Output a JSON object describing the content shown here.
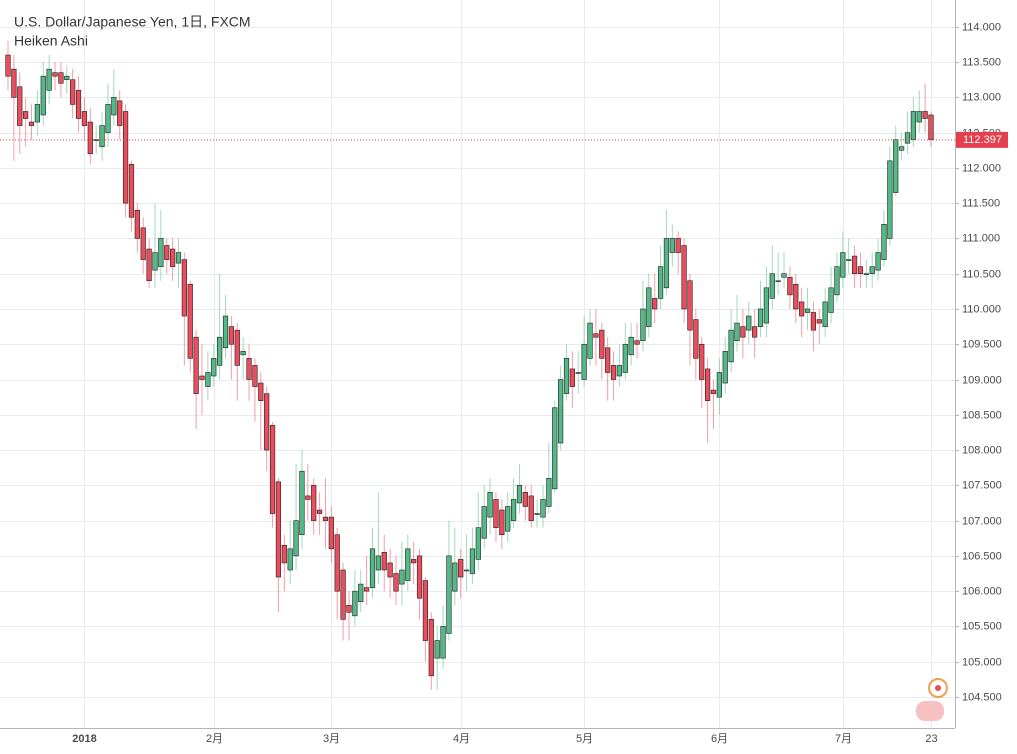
{
  "chart_data": {
    "type": "candlestick",
    "title": "U.S. Dollar/Japanese Yen, 1日, FXCM",
    "subtitle": "Heiken Ashi",
    "categories": [
      null,
      null,
      null,
      null,
      null,
      null,
      null,
      null,
      null,
      null,
      null,
      null,
      null,
      "2018",
      null,
      null,
      null,
      null,
      null,
      null,
      null,
      null,
      null,
      null,
      null,
      null,
      null,
      null,
      null,
      null,
      null,
      null,
      null,
      null,
      null,
      "2月",
      null,
      null,
      null,
      null,
      null,
      null,
      null,
      null,
      null,
      null,
      null,
      null,
      null,
      null,
      null,
      null,
      null,
      null,
      null,
      "3月",
      null,
      null,
      null,
      null,
      null,
      null,
      null,
      null,
      null,
      null,
      null,
      null,
      null,
      null,
      null,
      null,
      null,
      null,
      null,
      null,
      null,
      "4月",
      null,
      null,
      null,
      null,
      null,
      null,
      null,
      null,
      null,
      null,
      null,
      null,
      null,
      null,
      null,
      null,
      null,
      null,
      null,
      null,
      "5月",
      null,
      null,
      null,
      null,
      null,
      null,
      null,
      null,
      null,
      null,
      null,
      null,
      null,
      null,
      null,
      null,
      null,
      null,
      null,
      null,
      null,
      null,
      "6月",
      null,
      null,
      null,
      null,
      null,
      null,
      null,
      null,
      null,
      null,
      null,
      null,
      null,
      null,
      null,
      null,
      null,
      null,
      null,
      null,
      "7月",
      null,
      null,
      null,
      null,
      null,
      null,
      null,
      null,
      null,
      null,
      null,
      null,
      null,
      null,
      "23"
    ],
    "open": [
      113.6,
      113.4,
      113.15,
      112.8,
      112.65,
      112.65,
      112.75,
      113.1,
      113.35,
      113.35,
      113.25,
      113.25,
      113.1,
      112.8,
      112.65,
      112.4,
      112.3,
      112.5,
      112.75,
      112.95,
      112.8,
      112.05,
      111.4,
      111.15,
      110.85,
      110.55,
      110.6,
      110.9,
      110.85,
      110.65,
      110.7,
      110.35,
      109.6,
      109.05,
      108.9,
      109.05,
      109.2,
      109.45,
      109.75,
      109.7,
      109.35,
      109.3,
      109.2,
      108.95,
      108.8,
      108.35,
      107.55,
      106.65,
      106.3,
      106.5,
      106.8,
      107.35,
      107.5,
      107.15,
      107.05,
      107.05,
      106.8,
      106.3,
      105.8,
      105.65,
      105.85,
      106.05,
      106.05,
      106.3,
      106.55,
      106.4,
      106.25,
      106.1,
      106.15,
      106.45,
      106.5,
      106.15,
      105.6,
      105.05,
      105.05,
      105.4,
      106.0,
      106.45,
      106.3,
      106.25,
      106.45,
      106.75,
      107.05,
      107.3,
      107.15,
      106.85,
      107.0,
      107.25,
      107.4,
      107.35,
      107.1,
      107.05,
      107.2,
      107.45,
      108.1,
      108.8,
      109.15,
      109.1,
      109.0,
      109.3,
      109.65,
      109.7,
      109.45,
      109.2,
      109.05,
      109.1,
      109.35,
      109.55,
      109.55,
      109.75,
      110.15,
      110.15,
      110.3,
      110.8,
      111.0,
      110.9,
      110.4,
      109.85,
      109.5,
      109.15,
      108.85,
      108.75,
      108.95,
      109.25,
      109.55,
      109.75,
      109.7,
      109.75,
      109.75,
      109.8,
      110.15,
      110.4,
      110.45,
      110.45,
      110.35,
      110.1,
      109.95,
      109.95,
      109.85,
      109.75,
      109.95,
      110.2,
      110.45,
      110.7,
      110.75,
      110.6,
      110.5,
      110.5,
      110.55,
      110.7,
      111.0,
      111.65,
      112.25,
      112.35,
      112.4,
      112.65,
      112.8,
      112.75
    ],
    "high": [
      113.8,
      113.6,
      113.35,
      113.0,
      112.9,
      113.1,
      113.5,
      113.6,
      113.5,
      113.5,
      113.45,
      113.4,
      113.3,
      113.0,
      112.85,
      112.6,
      112.8,
      113.2,
      113.4,
      113.1,
      112.9,
      112.1,
      111.5,
      111.3,
      111.0,
      111.5,
      111.4,
      111.0,
      111.0,
      111.0,
      110.8,
      110.4,
      109.7,
      109.5,
      109.4,
      109.5,
      110.5,
      110.2,
      109.9,
      109.8,
      109.6,
      109.5,
      109.3,
      109.1,
      108.9,
      108.4,
      107.6,
      106.8,
      107.0,
      107.8,
      108.0,
      107.8,
      107.6,
      107.4,
      107.6,
      107.2,
      106.9,
      106.4,
      106.0,
      106.3,
      106.3,
      106.5,
      106.9,
      107.4,
      106.8,
      106.6,
      106.5,
      106.7,
      106.8,
      106.7,
      106.6,
      106.2,
      105.7,
      105.5,
      105.8,
      107.0,
      106.9,
      106.6,
      106.8,
      106.9,
      107.4,
      107.5,
      107.6,
      107.4,
      107.3,
      107.4,
      107.6,
      107.8,
      107.5,
      107.5,
      107.3,
      107.5,
      108.1,
      108.7,
      109.2,
      109.5,
      109.4,
      109.4,
      109.9,
      110.0,
      110.0,
      109.8,
      109.6,
      109.4,
      109.5,
      109.8,
      109.8,
      109.8,
      110.4,
      110.5,
      110.5,
      110.9,
      111.4,
      111.2,
      111.1,
      111.0,
      110.5,
      110.0,
      109.6,
      109.3,
      109.0,
      109.3,
      109.6,
      110.0,
      110.2,
      110.0,
      110.1,
      110.0,
      110.4,
      110.6,
      110.9,
      110.8,
      110.8,
      110.6,
      110.5,
      110.3,
      110.3,
      110.1,
      110.0,
      110.3,
      110.6,
      110.8,
      111.1,
      111.0,
      110.9,
      110.8,
      110.7,
      110.8,
      111.0,
      111.4,
      112.3,
      112.6,
      112.5,
      112.8,
      113.0,
      113.1,
      113.2,
      112.8
    ],
    "low": [
      113.1,
      112.1,
      112.2,
      112.3,
      112.4,
      112.45,
      112.6,
      112.9,
      113.1,
      113.0,
      113.05,
      112.7,
      112.5,
      112.4,
      112.05,
      112.2,
      112.1,
      112.3,
      112.6,
      112.4,
      111.3,
      111.1,
      110.8,
      110.5,
      110.3,
      110.3,
      110.4,
      110.5,
      110.4,
      110.3,
      109.2,
      109.1,
      108.3,
      108.5,
      108.7,
      108.9,
      109.0,
      109.3,
      109.0,
      108.7,
      109.0,
      108.7,
      108.4,
      108.0,
      107.7,
      106.9,
      105.7,
      106.0,
      106.1,
      106.3,
      106.6,
      107.0,
      106.8,
      106.8,
      106.6,
      106.4,
      105.6,
      105.3,
      105.3,
      105.5,
      105.7,
      105.8,
      105.9,
      106.1,
      106.0,
      105.9,
      105.8,
      105.8,
      106.0,
      106.1,
      105.6,
      105.0,
      104.6,
      104.6,
      104.9,
      105.3,
      105.8,
      105.9,
      106.0,
      106.1,
      106.3,
      106.6,
      106.8,
      106.7,
      106.6,
      106.7,
      106.9,
      107.1,
      107.0,
      106.9,
      106.9,
      106.9,
      107.1,
      107.4,
      108.0,
      108.7,
      108.6,
      108.8,
      108.9,
      109.2,
      109.2,
      109.0,
      108.7,
      108.7,
      108.9,
      109.0,
      109.2,
      109.3,
      109.4,
      109.6,
      109.8,
      110.0,
      110.2,
      110.6,
      110.5,
      109.8,
      109.2,
      109.0,
      108.6,
      108.1,
      108.3,
      108.5,
      108.8,
      109.1,
      109.4,
      109.3,
      109.5,
      109.3,
      109.6,
      109.6,
      110.0,
      110.2,
      110.3,
      110.0,
      109.8,
      109.6,
      109.7,
      109.4,
      109.5,
      109.6,
      109.8,
      110.1,
      110.3,
      110.5,
      110.3,
      110.3,
      110.3,
      110.3,
      110.4,
      110.6,
      110.9,
      111.6,
      112.1,
      112.2,
      112.3,
      112.5,
      112.5,
      112.3
    ],
    "close": [
      113.3,
      113.0,
      112.6,
      112.7,
      112.6,
      112.9,
      113.3,
      113.4,
      113.3,
      113.2,
      113.3,
      112.9,
      112.7,
      112.6,
      112.2,
      112.4,
      112.6,
      112.9,
      113.0,
      112.6,
      111.5,
      111.3,
      111.0,
      110.7,
      110.4,
      110.8,
      111.0,
      110.7,
      110.6,
      110.8,
      109.9,
      109.3,
      108.8,
      109.0,
      109.1,
      109.3,
      109.6,
      109.9,
      109.5,
      109.2,
      109.4,
      109.0,
      108.9,
      108.7,
      108.0,
      107.1,
      106.2,
      106.4,
      106.6,
      107.0,
      107.7,
      107.3,
      107.0,
      107.1,
      107.0,
      106.6,
      106.0,
      105.6,
      105.7,
      106.0,
      106.1,
      106.0,
      106.6,
      106.5,
      106.3,
      106.2,
      106.0,
      106.3,
      106.6,
      106.4,
      105.9,
      105.3,
      104.8,
      105.3,
      105.5,
      106.5,
      106.4,
      106.2,
      106.3,
      106.6,
      106.9,
      107.2,
      107.4,
      106.9,
      106.8,
      107.2,
      107.3,
      107.5,
      107.2,
      107.0,
      107.1,
      107.3,
      107.6,
      108.6,
      109.0,
      109.3,
      108.9,
      109.1,
      109.5,
      109.8,
      109.6,
      109.3,
      109.1,
      109.0,
      109.2,
      109.5,
      109.6,
      109.5,
      110.0,
      110.3,
      110.0,
      110.6,
      111.0,
      111.0,
      110.8,
      110.0,
      109.7,
      109.3,
      109.0,
      108.7,
      108.8,
      109.1,
      109.4,
      109.7,
      109.8,
      109.6,
      109.9,
      109.6,
      110.0,
      110.3,
      110.5,
      110.4,
      110.5,
      110.2,
      110.0,
      109.9,
      110.0,
      109.7,
      109.8,
      110.1,
      110.3,
      110.6,
      110.8,
      110.7,
      110.5,
      110.5,
      110.5,
      110.6,
      110.8,
      111.2,
      112.1,
      112.4,
      112.3,
      112.5,
      112.8,
      112.8,
      112.7,
      112.4
    ],
    "up_color": "#53b987",
    "down_color": "#eb4d5c",
    "ylim": [
      104.06,
      114.38
    ],
    "yticks": [
      {
        "value": 104.5,
        "label": "104.500"
      },
      {
        "value": 105,
        "label": "105.000"
      },
      {
        "value": 105.5,
        "label": "105.500"
      },
      {
        "value": 106,
        "label": "106.000"
      },
      {
        "value": 106.5,
        "label": "106.500"
      },
      {
        "value": 107,
        "label": "107.000"
      },
      {
        "value": 107.5,
        "label": "107.500"
      },
      {
        "value": 108,
        "label": "108.000"
      },
      {
        "value": 108.5,
        "label": "108.500"
      },
      {
        "value": 109,
        "label": "109.000"
      },
      {
        "value": 109.5,
        "label": "109.500"
      },
      {
        "value": 110,
        "label": "110.000"
      },
      {
        "value": 110.5,
        "label": "110.500"
      },
      {
        "value": 111,
        "label": "111.000"
      },
      {
        "value": 111.5,
        "label": "111.500"
      },
      {
        "value": 112,
        "label": "112.000"
      },
      {
        "value": 112.5,
        "label": "112.500"
      },
      {
        "value": 113,
        "label": "113.000"
      },
      {
        "value": 113.5,
        "label": "113.500"
      },
      {
        "value": 114,
        "label": "114.000"
      }
    ],
    "last_price": {
      "value": 112.397,
      "label": "112.397",
      "color": "#e53e4d"
    },
    "grid": true
  }
}
